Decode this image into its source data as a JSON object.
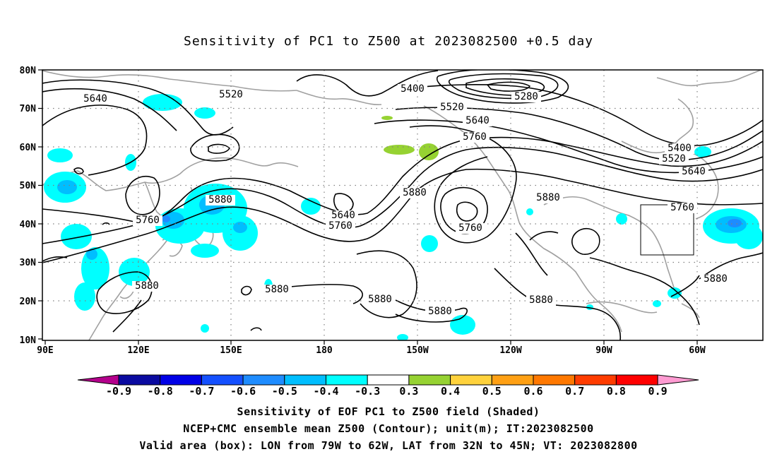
{
  "title": "Sensitivity of PC1 to Z500 at 2023082500 +0.5 day",
  "map": {
    "lat_labels": [
      "80N",
      "70N",
      "60N",
      "50N",
      "40N",
      "30N",
      "20N",
      "10N"
    ],
    "lon_labels": [
      "90E",
      "120E",
      "150E",
      "180",
      "150W",
      "120W",
      "90W",
      "60W"
    ],
    "contour_labels": [
      {
        "text": "5640",
        "id": "c5640-a"
      },
      {
        "text": "5520",
        "id": "c5520-a"
      },
      {
        "text": "5400",
        "id": "c5400-a"
      },
      {
        "text": "5280",
        "id": "c5280"
      },
      {
        "text": "5520",
        "id": "c5520-b"
      },
      {
        "text": "5640",
        "id": "c5640-b"
      },
      {
        "text": "5760",
        "id": "c5760-a"
      },
      {
        "text": "5400",
        "id": "c5400-b"
      },
      {
        "text": "5520",
        "id": "c5520-c"
      },
      {
        "text": "5640",
        "id": "c5640-c"
      },
      {
        "text": "5880",
        "id": "c5880-a"
      },
      {
        "text": "5640",
        "id": "c5640-d"
      },
      {
        "text": "5760",
        "id": "c5760-b"
      },
      {
        "text": "5880",
        "id": "c5880-b"
      },
      {
        "text": "5760",
        "id": "c5760-c"
      },
      {
        "text": "5880",
        "id": "c5880-c"
      },
      {
        "text": "5760",
        "id": "c5760-d"
      },
      {
        "text": "5760",
        "id": "c5760-e"
      },
      {
        "text": "5880",
        "id": "c5880-d"
      },
      {
        "text": "5880",
        "id": "c5880-e"
      },
      {
        "text": "5880",
        "id": "c5880-f"
      },
      {
        "text": "5880",
        "id": "c5880-g"
      },
      {
        "text": "5880",
        "id": "c5880-h"
      },
      {
        "text": "5880",
        "id": "c5880-i"
      }
    ],
    "valid_box": {
      "lon_west": "79W",
      "lon_east": "62W",
      "lat_south": "32N",
      "lat_north": "45N"
    }
  },
  "colorbar": {
    "labels": [
      "-0.9",
      "-0.8",
      "-0.7",
      "-0.6",
      "-0.5",
      "-0.4",
      "-0.3",
      "0.3",
      "0.4",
      "0.5",
      "0.6",
      "0.7",
      "0.8",
      "0.9"
    ],
    "colors": [
      "#b4008c",
      "#0a0aa0",
      "#0000e6",
      "#1450ff",
      "#1e8cff",
      "#00beff",
      "#00ffff",
      "#ffffff",
      "#96d232",
      "#ffd23c",
      "#ffa014",
      "#ff7800",
      "#ff3c00",
      "#ff0000",
      "#ff9bd2"
    ]
  },
  "captions": {
    "line1": "Sensitivity of EOF PC1 to Z500 field (Shaded)",
    "line2": "NCEP+CMC ensemble mean Z500 (Contour); unit(m); IT:2023082500",
    "line3": "Valid area (box): LON from 79W to 62W, LAT from 32N to 45N; VT: 2023082800"
  }
}
